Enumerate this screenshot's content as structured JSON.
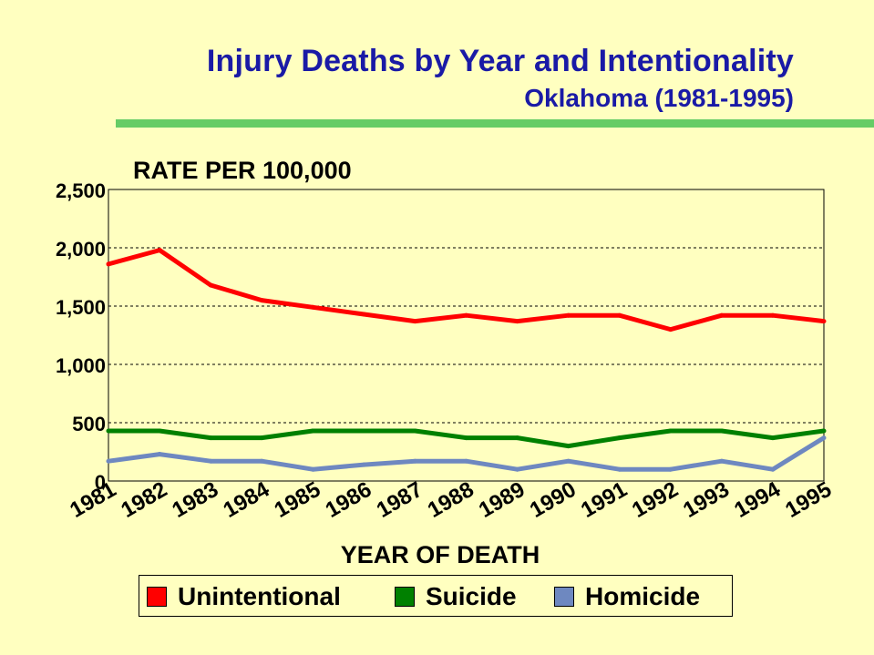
{
  "header": {
    "title": "Injury Deaths by Year and Intentionality",
    "subtitle": "Oklahoma (1981-1995)"
  },
  "chart_data": {
    "type": "line",
    "ylabel": "RATE PER 100,000",
    "xlabel": "YEAR OF DEATH",
    "x": [
      "1981",
      "1982",
      "1983",
      "1984",
      "1985",
      "1986",
      "1987",
      "1988",
      "1989",
      "1990",
      "1991",
      "1992",
      "1993",
      "1994",
      "1995"
    ],
    "ylim": [
      0,
      2500
    ],
    "yticks": [
      0,
      500,
      1000,
      1500,
      2000,
      2500
    ],
    "ytick_labels": [
      "0",
      "500",
      "1,000",
      "1,500",
      "2,000",
      "2,500"
    ],
    "grid": "horizontal-dashed",
    "legend_position": "bottom",
    "series": [
      {
        "name": "Unintentional",
        "color": "#FF0000",
        "values": [
          1860,
          1980,
          1680,
          1550,
          1490,
          1430,
          1370,
          1420,
          1370,
          1420,
          1420,
          1300,
          1420,
          1420,
          1370
        ]
      },
      {
        "name": "Suicide",
        "color": "#008000",
        "values": [
          430,
          430,
          370,
          370,
          430,
          430,
          430,
          370,
          370,
          300,
          370,
          430,
          430,
          370,
          430
        ]
      },
      {
        "name": "Homicide",
        "color": "#6E88C0",
        "values": [
          170,
          230,
          170,
          170,
          100,
          140,
          170,
          170,
          100,
          170,
          100,
          100,
          170,
          100,
          370
        ]
      }
    ]
  }
}
